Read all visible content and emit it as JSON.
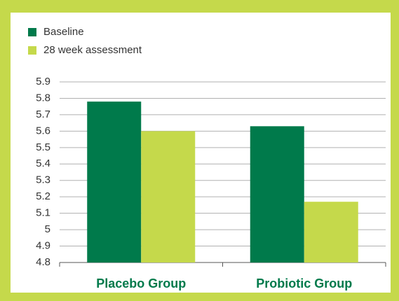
{
  "chart_data": {
    "type": "bar",
    "categories": [
      "Placebo Group",
      "Probiotic Group"
    ],
    "series": [
      {
        "name": "Baseline",
        "color": "#007a4b",
        "values": [
          5.78,
          5.63
        ]
      },
      {
        "name": "28 week assessment",
        "color": "#c5d94b",
        "values": [
          5.6,
          5.17
        ]
      }
    ],
    "ylim": [
      4.8,
      5.9
    ],
    "yticks": [
      4.8,
      4.9,
      5,
      5.1,
      5.2,
      5.3,
      5.4,
      5.5,
      5.6,
      5.7,
      5.8,
      5.9
    ],
    "grid": true,
    "legend": "top-left"
  }
}
